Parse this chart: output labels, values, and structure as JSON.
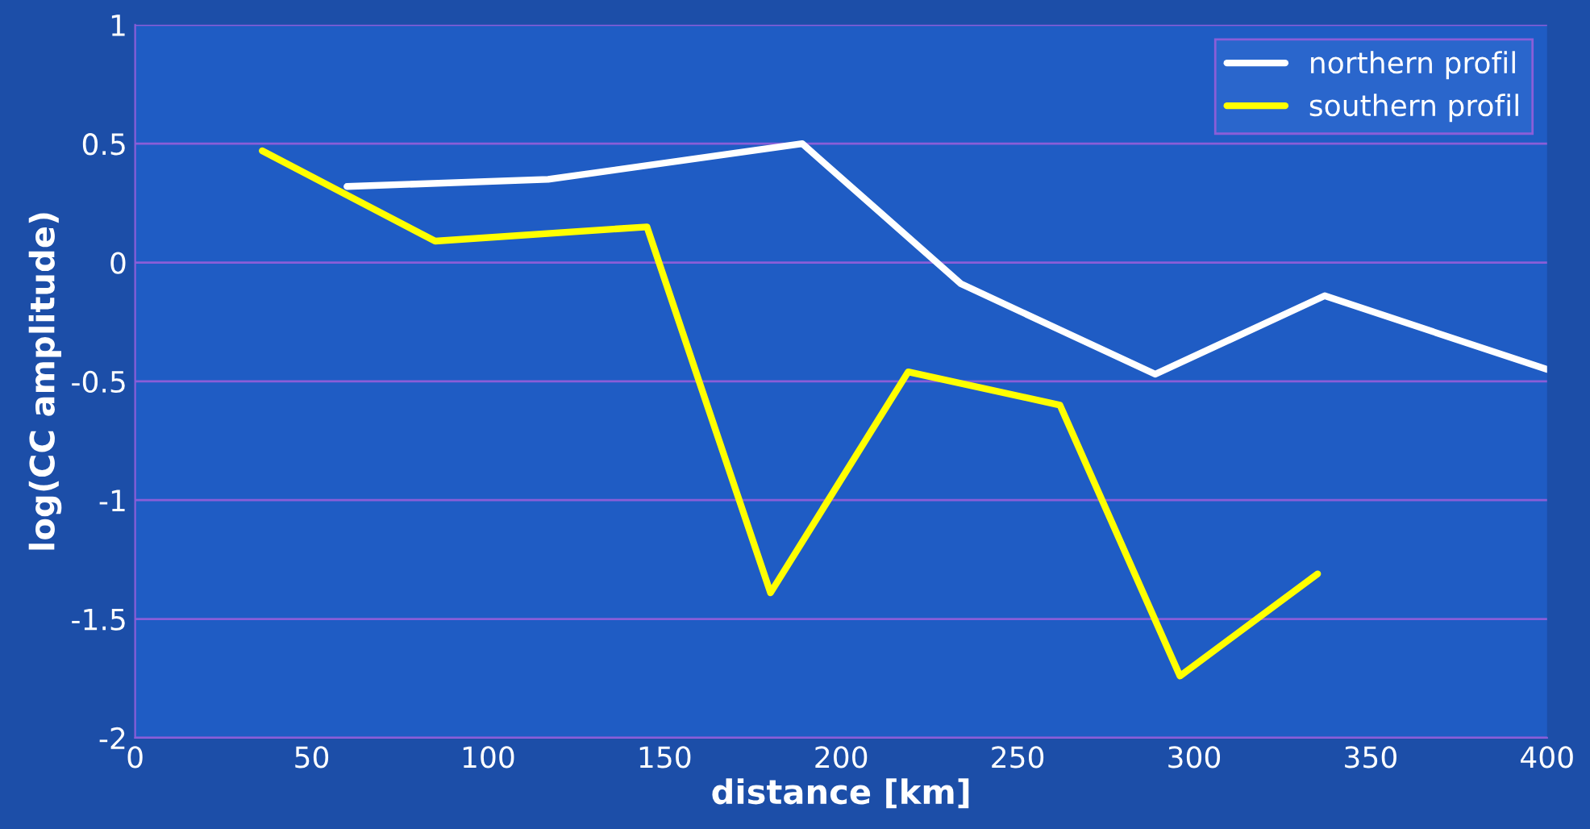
{
  "chart_data": {
    "type": "line",
    "xlabel": "distance [km]",
    "ylabel": "log(CC amplitude)",
    "xlim": [
      0,
      400
    ],
    "xticks": [
      0,
      50,
      100,
      150,
      200,
      250,
      300,
      350,
      400
    ],
    "ylim": [
      -2,
      1
    ],
    "yticks": [
      -2,
      -1.5,
      -1,
      -0.5,
      0,
      0.5,
      1
    ],
    "grid": "y",
    "legend": "top right",
    "line_style": "solid",
    "marker": "none",
    "series": [
      {
        "name": "northern profil",
        "color": "#ffffff",
        "x": [
          60,
          117,
          189,
          234,
          289,
          337,
          400
        ],
        "values": [
          0.32,
          0.35,
          0.5,
          -0.09,
          -0.47,
          -0.14,
          -0.45
        ]
      },
      {
        "name": "southern profil",
        "color": "#ffff00",
        "x": [
          36,
          85,
          145,
          180,
          219,
          262,
          296,
          335
        ],
        "values": [
          0.47,
          0.09,
          0.15,
          -1.39,
          -0.46,
          -0.6,
          -1.74,
          -1.31
        ]
      }
    ]
  }
}
